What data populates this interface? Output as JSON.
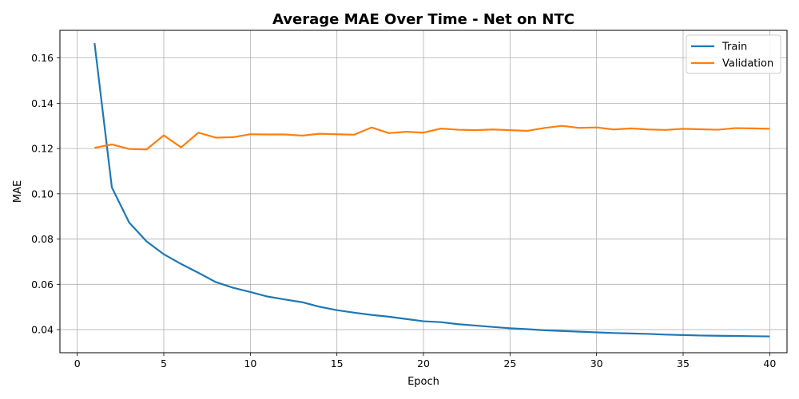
{
  "chart_data": {
    "type": "line",
    "title": "Average MAE Over Time - Net on NTC",
    "xlabel": "Epoch",
    "ylabel": "MAE",
    "xlim": [
      -1,
      41
    ],
    "ylim": [
      0.0298,
      0.1722
    ],
    "xticks": [
      "0",
      "5",
      "10",
      "15",
      "20",
      "25",
      "30",
      "35",
      "40"
    ],
    "yticks": [
      "0.04",
      "0.06",
      "0.08",
      "0.10",
      "0.12",
      "0.14",
      "0.16"
    ],
    "grid": true,
    "legend_position": "top-right",
    "x": [
      1,
      2,
      3,
      4,
      5,
      6,
      7,
      8,
      9,
      10,
      11,
      12,
      13,
      14,
      15,
      16,
      17,
      18,
      19,
      20,
      21,
      22,
      23,
      24,
      25,
      26,
      27,
      28,
      29,
      30,
      31,
      32,
      33,
      34,
      35,
      36,
      37,
      38,
      39,
      40
    ],
    "series": [
      {
        "name": "Train",
        "color": "#1f77b4",
        "values": [
          0.1665,
          0.1028,
          0.0873,
          0.079,
          0.0733,
          0.069,
          0.0651,
          0.061,
          0.0585,
          0.0566,
          0.0546,
          0.0533,
          0.0521,
          0.0501,
          0.0486,
          0.0475,
          0.0465,
          0.0457,
          0.0447,
          0.0437,
          0.0433,
          0.0424,
          0.0418,
          0.0412,
          0.0406,
          0.0402,
          0.0397,
          0.0394,
          0.0391,
          0.0388,
          0.0385,
          0.0383,
          0.0381,
          0.0378,
          0.0376,
          0.0374,
          0.0373,
          0.0372,
          0.0371,
          0.037
        ]
      },
      {
        "name": "Validation",
        "color": "#ff7f0e",
        "values": [
          0.1203,
          0.1218,
          0.1198,
          0.1196,
          0.1258,
          0.1205,
          0.127,
          0.1248,
          0.125,
          0.1263,
          0.1262,
          0.1262,
          0.1257,
          0.1265,
          0.1263,
          0.1261,
          0.1293,
          0.1268,
          0.1274,
          0.127,
          0.1288,
          0.1283,
          0.1281,
          0.1284,
          0.1281,
          0.1278,
          0.1291,
          0.13,
          0.1291,
          0.1293,
          0.1284,
          0.1289,
          0.1284,
          0.1282,
          0.1287,
          0.1285,
          0.1283,
          0.129,
          0.1289,
          0.1287
        ]
      }
    ]
  }
}
